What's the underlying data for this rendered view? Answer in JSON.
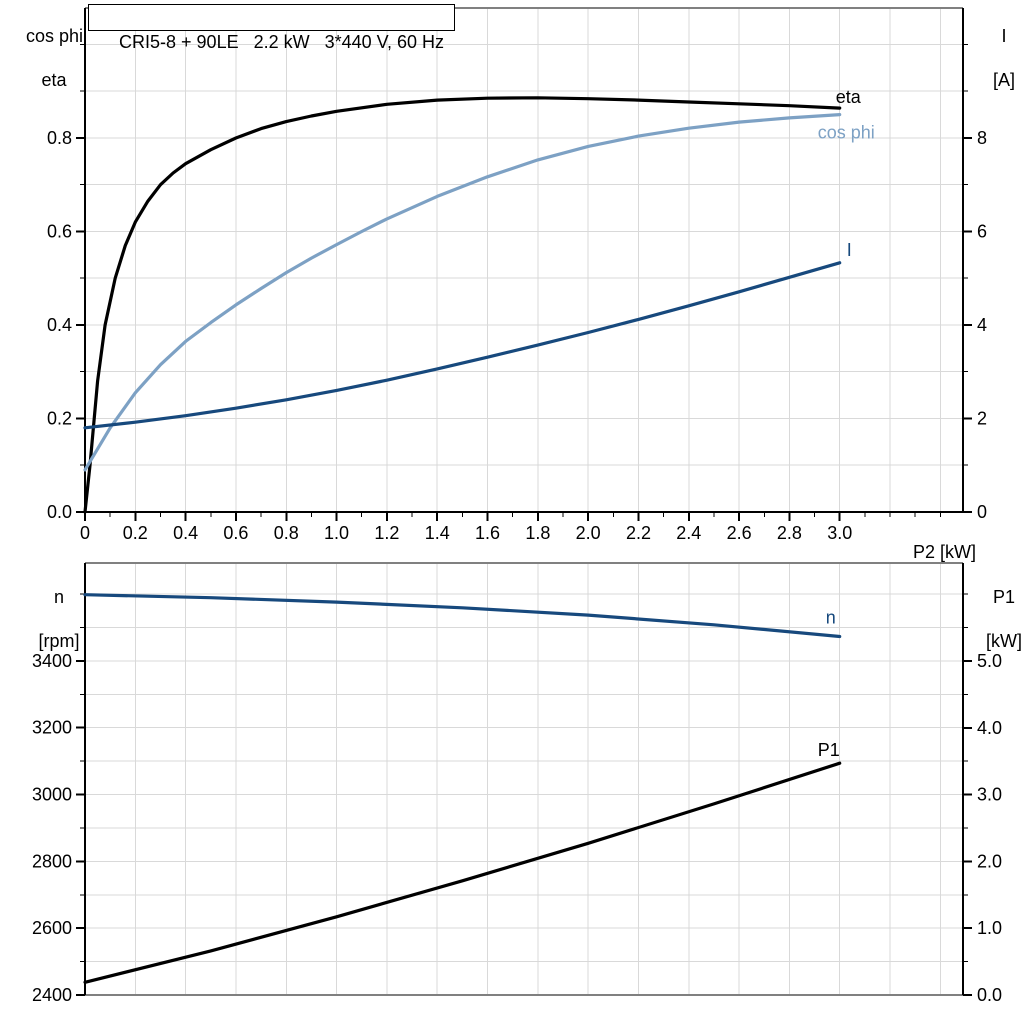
{
  "title": "CRI5-8 + 90LE   2.2 kW   3*440 V, 60 Hz",
  "colors": {
    "black": "#000000",
    "light_blue": "#7DA1C4",
    "dark_blue": "#17497D",
    "grid": "#D9D9D9",
    "frame_gray": "#808080",
    "text": "#000000"
  },
  "chart_data": [
    {
      "id": "top",
      "type": "line",
      "x_axis": {
        "label": "P2 [kW]",
        "tick_values": [
          0,
          0.2,
          0.4,
          0.6,
          0.8,
          1.0,
          1.2,
          1.4,
          1.6,
          1.8,
          2.0,
          2.2,
          2.4,
          2.6,
          2.8,
          3.0
        ],
        "tick_labels": [
          "0",
          "0.2",
          "0.4",
          "0.6",
          "0.8",
          "1.0",
          "1.2",
          "1.4",
          "1.6",
          "1.8",
          "2.0",
          "2.2",
          "2.4",
          "2.6",
          "2.8",
          "3.0"
        ],
        "minor_step": 0.1,
        "gridline_step": 0.2,
        "range": [
          0,
          3.49
        ]
      },
      "left_axis": {
        "label_lines": [
          "cos phi",
          "eta"
        ],
        "tick_values": [
          0.0,
          0.2,
          0.4,
          0.6,
          0.8
        ],
        "tick_labels": [
          "0.0",
          "0.2",
          "0.4",
          "0.6",
          "0.8"
        ],
        "minor_step": 0.1,
        "gridline_step": 0.1,
        "range": [
          0,
          1.078
        ]
      },
      "right_axis": {
        "label_lines": [
          "I",
          "[A]"
        ],
        "tick_values": [
          0,
          2,
          4,
          6,
          8
        ],
        "tick_labels": [
          "0",
          "2",
          "4",
          "6",
          "8"
        ],
        "minor_step": 1,
        "range": [
          0,
          10.78
        ]
      },
      "series": [
        {
          "name": "eta",
          "label": "eta",
          "axis": "left",
          "color": "black",
          "x": [
            0,
            0.02,
            0.05,
            0.08,
            0.12,
            0.16,
            0.2,
            0.25,
            0.3,
            0.35,
            0.4,
            0.5,
            0.6,
            0.7,
            0.8,
            0.9,
            1.0,
            1.2,
            1.4,
            1.6,
            1.8,
            2.0,
            2.2,
            2.4,
            2.6,
            2.8,
            3.0
          ],
          "y": [
            0,
            0.1,
            0.28,
            0.4,
            0.5,
            0.57,
            0.62,
            0.665,
            0.7,
            0.725,
            0.745,
            0.775,
            0.8,
            0.82,
            0.835,
            0.847,
            0.857,
            0.872,
            0.881,
            0.885,
            0.886,
            0.884,
            0.881,
            0.877,
            0.873,
            0.869,
            0.864
          ]
        },
        {
          "name": "cos_phi",
          "label": "cos phi",
          "axis": "left",
          "color": "light_blue",
          "x": [
            0,
            0.1,
            0.2,
            0.3,
            0.4,
            0.5,
            0.6,
            0.7,
            0.8,
            0.9,
            1.0,
            1.1,
            1.2,
            1.4,
            1.6,
            1.8,
            2.0,
            2.2,
            2.4,
            2.6,
            2.8,
            3.0
          ],
          "y": [
            0.09,
            0.18,
            0.255,
            0.315,
            0.365,
            0.405,
            0.443,
            0.478,
            0.512,
            0.543,
            0.572,
            0.6,
            0.627,
            0.675,
            0.717,
            0.753,
            0.782,
            0.804,
            0.821,
            0.834,
            0.843,
            0.85
          ]
        },
        {
          "name": "I",
          "label": "I",
          "axis": "right",
          "color": "dark_blue",
          "x": [
            0,
            0.2,
            0.4,
            0.6,
            0.8,
            1.0,
            1.2,
            1.4,
            1.6,
            1.8,
            2.0,
            2.2,
            2.4,
            2.6,
            2.8,
            3.0
          ],
          "y": [
            1.8,
            1.92,
            2.06,
            2.22,
            2.4,
            2.6,
            2.82,
            3.06,
            3.31,
            3.57,
            3.84,
            4.12,
            4.41,
            4.71,
            5.02,
            5.33
          ]
        }
      ]
    },
    {
      "id": "bottom",
      "type": "line",
      "x_axis": {
        "label": "",
        "tick_values": [],
        "tick_labels": [],
        "minor_step": 0,
        "gridline_step": 0.2,
        "range": [
          0,
          3.49
        ]
      },
      "left_axis": {
        "label_lines": [
          "n",
          "[rpm]"
        ],
        "tick_values": [
          2400,
          2600,
          2800,
          3000,
          3200,
          3400
        ],
        "tick_labels": [
          "2400",
          "2600",
          "2800",
          "3000",
          "3200",
          "3400"
        ],
        "minor_step": 100,
        "gridline_step": 100,
        "range": [
          2400,
          3693
        ]
      },
      "right_axis": {
        "label_lines": [
          "P1",
          "[kW]"
        ],
        "tick_values": [
          0,
          1,
          2,
          3,
          4,
          5
        ],
        "tick_labels": [
          "0.0",
          "1.0",
          "2.0",
          "3.0",
          "4.0",
          "5.0"
        ],
        "minor_step": 0.5,
        "range": [
          0,
          6.466
        ]
      },
      "series": [
        {
          "name": "n",
          "label": "n",
          "axis": "left",
          "color": "dark_blue",
          "x": [
            0,
            0.5,
            1.0,
            1.5,
            2.0,
            2.5,
            3.0
          ],
          "y": [
            3598,
            3589,
            3576,
            3559,
            3537,
            3508,
            3473
          ]
        },
        {
          "name": "P1",
          "label": "P1",
          "axis": "right",
          "color": "black",
          "x": [
            0,
            0.5,
            1.0,
            1.5,
            2.0,
            2.5,
            3.0
          ],
          "y": [
            0.19,
            0.66,
            1.17,
            1.71,
            2.27,
            2.86,
            3.47
          ]
        }
      ]
    }
  ]
}
